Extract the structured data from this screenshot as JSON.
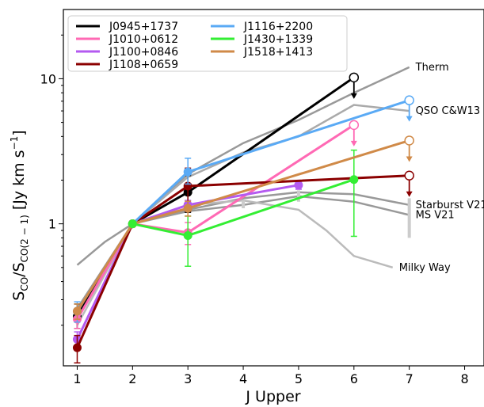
{
  "chart_data": {
    "type": "line",
    "xlabel": "J Upper",
    "ylabel_main": "S",
    "ylabel_sub_num": "CO",
    "ylabel_den": "/S",
    "ylabel_sub_den": "CO(2 − 1)",
    "ylabel_unit": " [Jy km s",
    "ylabel_unit_exp": "−1",
    "ylabel_unit_end": "]",
    "xscale": "linear",
    "yscale": "log",
    "xlim": [
      0.75,
      8.35
    ],
    "ylim": [
      0.105,
      30
    ],
    "xticks": [
      1,
      2,
      3,
      4,
      5,
      6,
      7,
      8
    ],
    "xtick_labels": [
      "1",
      "2",
      "3",
      "4",
      "5",
      "6",
      "7",
      "8"
    ],
    "yticks": [
      1,
      10
    ],
    "ytick_labels": [
      "1",
      "10"
    ],
    "legend": {
      "position": "top-left",
      "columns": 2
    },
    "series": [
      {
        "name": "J0945+1737",
        "color": "#000000",
        "dashed": false,
        "x": [
          1,
          2,
          3,
          6
        ],
        "y": [
          0.23,
          1.0,
          1.65,
          10.2
        ],
        "err_lo": [
          0.04,
          0,
          0.45,
          0
        ],
        "err_hi": [
          0.05,
          0,
          0.5,
          0
        ],
        "upper_limit_x": 6
      },
      {
        "name": "J1010+0612",
        "color": "#ff69b4",
        "x": [
          1,
          2,
          3,
          6
        ],
        "y": [
          0.22,
          1.0,
          0.87,
          4.8
        ],
        "err_lo": [
          0.03,
          0,
          0.15,
          0
        ],
        "err_hi": [
          0.03,
          0,
          0.15,
          0
        ],
        "upper_limit_x": 6
      },
      {
        "name": "J1100+0846",
        "color": "#b45af0",
        "x": [
          1,
          2,
          3,
          5
        ],
        "y": [
          0.16,
          1.0,
          1.35,
          1.85
        ],
        "err_lo": [
          0.02,
          0,
          0.1,
          0.12
        ],
        "err_hi": [
          0.02,
          0,
          0.1,
          0.12
        ]
      },
      {
        "name": "J1108+0659",
        "color": "#8b0000",
        "x": [
          1,
          2,
          3,
          7
        ],
        "y": [
          0.14,
          1.0,
          1.82,
          2.15
        ],
        "err_lo": [
          0.03,
          0,
          0.6,
          0
        ],
        "err_hi": [
          0.03,
          0,
          0.6,
          0
        ],
        "upper_limit_x": 7
      },
      {
        "name": "J1116+2200",
        "color": "#5aaaf5",
        "x": [
          1,
          2,
          3,
          7
        ],
        "y": [
          0.25,
          1.0,
          2.28,
          7.1
        ],
        "err_lo": [
          0.04,
          0,
          0.4,
          0
        ],
        "err_hi": [
          0.04,
          0,
          0.55,
          0
        ],
        "upper_limit_x": 7
      },
      {
        "name": "J1430+1339",
        "color": "#33ee33",
        "x": [
          2,
          3,
          6
        ],
        "y": [
          1.0,
          0.83,
          2.02
        ],
        "err_lo": [
          0,
          0.32,
          1.2
        ],
        "err_hi": [
          0,
          0.3,
          1.2
        ]
      },
      {
        "name": "J1518+1413",
        "color": "#d08a48",
        "x": [
          1,
          2,
          3,
          7
        ],
        "y": [
          0.25,
          1.0,
          1.28,
          3.75
        ],
        "err_lo": [
          0.03,
          0,
          0.15,
          0
        ],
        "err_hi": [
          0.03,
          0,
          0.15,
          0
        ],
        "upper_limit_x": 7
      }
    ],
    "reference_models": [
      {
        "label": "Therm",
        "color": "#999999",
        "x": [
          1,
          1.5,
          2,
          3,
          4,
          5,
          6,
          7
        ],
        "y": [
          0.52,
          0.75,
          1.0,
          2.2,
          3.6,
          5.2,
          8.0,
          12.0
        ]
      },
      {
        "label": "QSO C&W13",
        "color": "#aaaaaa",
        "x": [
          1,
          2,
          3,
          4,
          5,
          6,
          7
        ],
        "y": [
          0.24,
          1.0,
          2.1,
          3.1,
          4.0,
          6.6,
          6.0
        ]
      },
      {
        "label": "Starburst V21",
        "color": "#999999",
        "x": [
          1,
          2,
          3,
          4,
          5,
          6,
          7
        ],
        "y": [
          0.26,
          1.0,
          1.25,
          1.5,
          1.65,
          1.6,
          1.35
        ]
      },
      {
        "label": "MS V21",
        "color": "#999999",
        "x": [
          1,
          2,
          3,
          4,
          5,
          6,
          7
        ],
        "y": [
          0.26,
          1.0,
          1.22,
          1.35,
          1.55,
          1.42,
          1.15
        ]
      },
      {
        "label": "Milky Way",
        "color": "#bbbbbb",
        "x": [
          1,
          2,
          3,
          4,
          5,
          5.5,
          6,
          6.7
        ],
        "y": [
          0.2,
          1.0,
          1.35,
          1.45,
          1.25,
          0.9,
          0.6,
          0.5
        ]
      }
    ]
  }
}
